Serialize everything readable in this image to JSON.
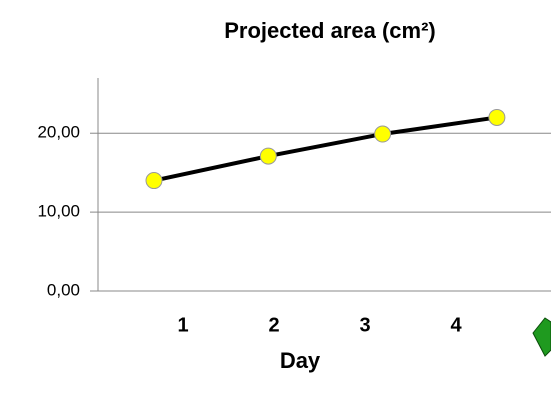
{
  "chart_data": {
    "type": "line",
    "title": "Projected area (cm²)",
    "x_label": "Day",
    "categories": [
      "1",
      "2",
      "3",
      "4"
    ],
    "series": [
      {
        "name": "Projected area",
        "color": "#000000",
        "marker_color": "#ffff00",
        "values": [
          14.0,
          17.1,
          19.9,
          22.0
        ]
      }
    ],
    "ylim": [
      0,
      27
    ],
    "yticks": [
      {
        "value": 0,
        "label": "0,00"
      },
      {
        "value": 10,
        "label": "10,00"
      },
      {
        "value": 20,
        "label": "20,00"
      }
    ],
    "grid": true
  }
}
